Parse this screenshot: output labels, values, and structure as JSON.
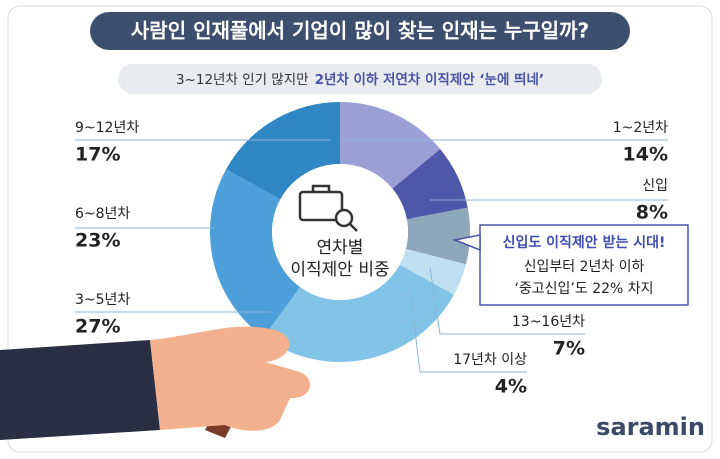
{
  "chart_data": {
    "type": "pie",
    "donut": true,
    "title": "사람인 인재풀에서 기업이 많이 찾는 인재는 누구일까?",
    "subtitle": "3~12년차 인기 많지만",
    "subtitle_highlight": "2년차 이하 저연차 이직제안 ‘눈에 띄네’",
    "center_label": [
      "연차별",
      "이직제안 비중"
    ],
    "annotation": {
      "title": "신입도 이직제안 받는 시대!",
      "lines": [
        "신입부터 2년차 이하",
        "‘중고신입’도 22% 차지"
      ]
    },
    "categories": [
      "1~2년차",
      "신입",
      "13~16년차",
      "17년차 이상",
      "3~5년차",
      "6~8년차",
      "9~12년차"
    ],
    "values": [
      14,
      8,
      7,
      4,
      27,
      23,
      17
    ],
    "value_labels": [
      "14%",
      "8%",
      "7%",
      "4%",
      "27%",
      "23%",
      "17%"
    ],
    "colors": [
      "#9a9fd6",
      "#4f57a9",
      "#8ea7ba",
      "#bfe0f1",
      "#82c3e8",
      "#4c9fd8",
      "#2f87c3"
    ],
    "brand": "saramin"
  }
}
